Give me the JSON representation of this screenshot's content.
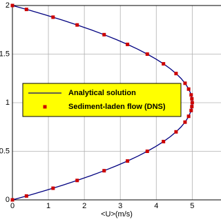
{
  "chart_data": {
    "type": "line",
    "x_label": "<U>(m/s)",
    "xlim": [
      0,
      5.8
    ],
    "xticks": [
      0,
      1,
      2,
      3,
      4,
      5
    ],
    "ylim": [
      0,
      2
    ],
    "yticks": [
      0,
      0.5,
      1,
      1.5,
      2
    ],
    "grid": true,
    "legend": "center-left",
    "legend_color": "#ffff00",
    "series": [
      {
        "name": "Analytical solution",
        "color": "#000080",
        "kind": "line",
        "x": [
          0,
          0.4875,
          0.95,
          1.3875,
          1.8,
          2.1875,
          2.55,
          2.8875,
          3.2,
          3.4875,
          3.75,
          3.9875,
          4.2,
          4.3875,
          4.55,
          4.6875,
          4.8,
          4.8875,
          4.95,
          4.9875,
          5,
          4.9875,
          4.95,
          4.8875,
          4.8,
          4.6875,
          4.55,
          4.3875,
          4.2,
          3.9875,
          3.75,
          3.4875,
          3.2,
          2.8875,
          2.55,
          2.1875,
          1.8,
          1.3875,
          0.95,
          0.4875,
          0
        ],
        "y": [
          0,
          0.05,
          0.1,
          0.15,
          0.2,
          0.25,
          0.3,
          0.35,
          0.4,
          0.45,
          0.5,
          0.55,
          0.6,
          0.65,
          0.7,
          0.75,
          0.8,
          0.85,
          0.9,
          0.95,
          1,
          1.05,
          1.1,
          1.15,
          1.2,
          1.25,
          1.3,
          1.35,
          1.4,
          1.45,
          1.5,
          1.55,
          1.6,
          1.65,
          1.7,
          1.75,
          1.8,
          1.85,
          1.9,
          1.95,
          2
        ]
      },
      {
        "name": "Sediment-laden flow (DNS)",
        "color": "#cc0000",
        "kind": "marker",
        "x": [
          0,
          0.39,
          1.13,
          1.8,
          2.55,
          3.2,
          3.75,
          4.2,
          4.55,
          4.8,
          4.9,
          4.97,
          4.99,
          5,
          4.99,
          4.97,
          4.9,
          4.8,
          4.55,
          4.2,
          3.75,
          3.2,
          2.55,
          1.8,
          1.13,
          0.39,
          0
        ],
        "y": [
          0,
          0.04,
          0.12,
          0.2,
          0.3,
          0.4,
          0.5,
          0.6,
          0.7,
          0.8,
          0.86,
          0.92,
          0.96,
          1,
          1.04,
          1.08,
          1.14,
          1.2,
          1.3,
          1.4,
          1.5,
          1.6,
          1.7,
          1.8,
          1.88,
          1.96,
          2
        ]
      }
    ]
  }
}
